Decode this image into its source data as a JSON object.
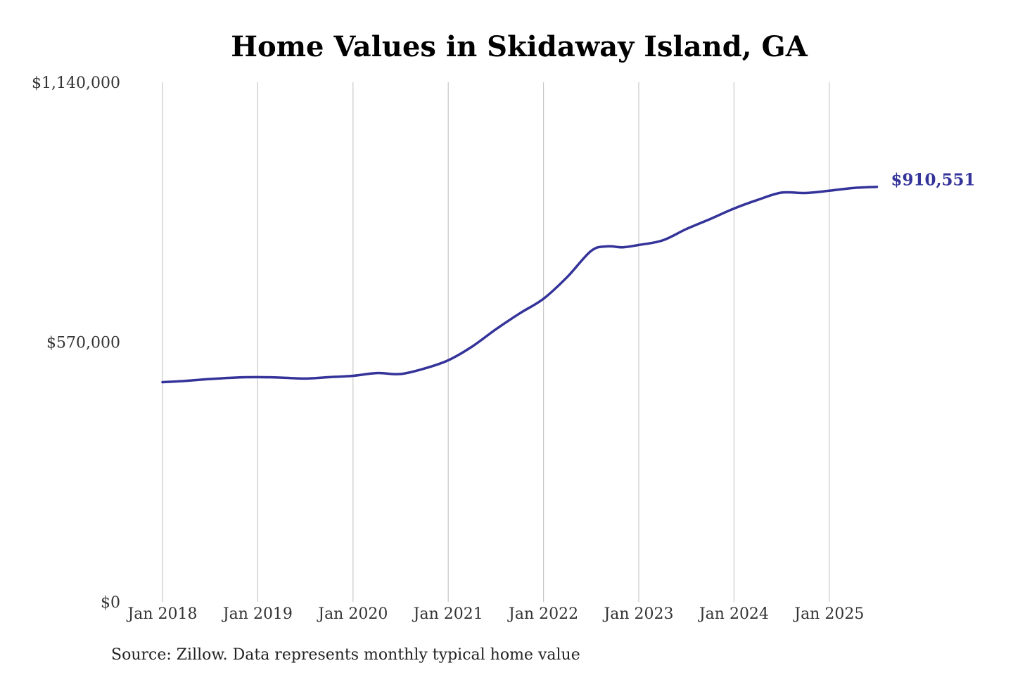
{
  "chart_data": {
    "type": "line",
    "title": "Home Values in Skidaway Island, GA",
    "xlabel": "",
    "ylabel": "",
    "x_ticks": [
      "Jan 2018",
      "Jan 2019",
      "Jan 2020",
      "Jan 2021",
      "Jan 2022",
      "Jan 2023",
      "Jan 2024",
      "Jan 2025"
    ],
    "y_ticks": [
      {
        "value": 0,
        "label": "$0"
      },
      {
        "value": 570000,
        "label": "$570,000"
      },
      {
        "value": 1140000,
        "label": "$1,140,000"
      }
    ],
    "ylim": [
      0,
      1140000
    ],
    "xlim": [
      "2018-01",
      "2025-07"
    ],
    "grid": "vertical lines at x ticks",
    "line_color": "#33339a",
    "series": [
      {
        "end_label": "$910,551",
        "points": [
          {
            "x": "2018-01",
            "y": 482000
          },
          {
            "x": "2018-04",
            "y": 485000
          },
          {
            "x": "2018-07",
            "y": 489000
          },
          {
            "x": "2018-10",
            "y": 492000
          },
          {
            "x": "2019-01",
            "y": 493000
          },
          {
            "x": "2019-04",
            "y": 492000
          },
          {
            "x": "2019-07",
            "y": 490000
          },
          {
            "x": "2019-10",
            "y": 493000
          },
          {
            "x": "2020-01",
            "y": 496000
          },
          {
            "x": "2020-04",
            "y": 502000
          },
          {
            "x": "2020-07",
            "y": 500000
          },
          {
            "x": "2020-10",
            "y": 512000
          },
          {
            "x": "2021-01",
            "y": 530000
          },
          {
            "x": "2021-04",
            "y": 560000
          },
          {
            "x": "2021-07",
            "y": 598000
          },
          {
            "x": "2021-10",
            "y": 633000
          },
          {
            "x": "2022-01",
            "y": 665000
          },
          {
            "x": "2022-04",
            "y": 713000
          },
          {
            "x": "2022-07",
            "y": 770000
          },
          {
            "x": "2022-09",
            "y": 780000
          },
          {
            "x": "2022-11",
            "y": 778000
          },
          {
            "x": "2023-01",
            "y": 783000
          },
          {
            "x": "2023-04",
            "y": 793000
          },
          {
            "x": "2023-07",
            "y": 818000
          },
          {
            "x": "2023-10",
            "y": 840000
          },
          {
            "x": "2024-01",
            "y": 863000
          },
          {
            "x": "2024-04",
            "y": 882000
          },
          {
            "x": "2024-07",
            "y": 898000
          },
          {
            "x": "2024-10",
            "y": 897000
          },
          {
            "x": "2025-01",
            "y": 902000
          },
          {
            "x": "2025-04",
            "y": 908000
          },
          {
            "x": "2025-07",
            "y": 910551
          }
        ]
      }
    ]
  },
  "footer": {
    "source": "Source: Zillow. Data represents monthly typical home value"
  }
}
